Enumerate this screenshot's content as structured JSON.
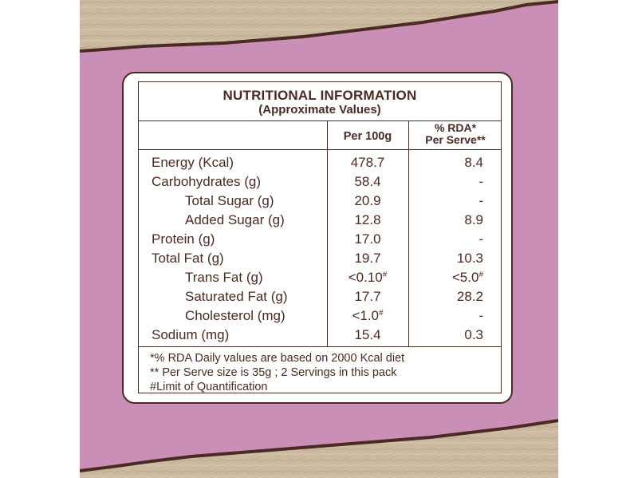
{
  "colors": {
    "pack_pink": "#c98fb6",
    "kraft": "#cbb99f",
    "brown": "#4a2a22",
    "panel": "#ffffff"
  },
  "panel": {
    "title": "NUTRITIONAL INFORMATION",
    "subtitle": "(Approximate Values)",
    "headers": {
      "per100g": "Per 100g",
      "rda_line1": "% RDA*",
      "rda_line2": "Per Serve**"
    },
    "rows": [
      {
        "label": "Energy (Kcal)",
        "per100g": "478.7",
        "rda": "8.4"
      },
      {
        "label": "Carbohydrates (g)",
        "per100g": "58.4",
        "rda": "-"
      },
      {
        "label": "Total Sugar (g)",
        "per100g": "20.9",
        "rda": "-"
      },
      {
        "label": "Added Sugar (g)",
        "per100g": "12.8",
        "rda": "8.9"
      },
      {
        "label": "Protein (g)",
        "per100g": "17.0",
        "rda": "-"
      },
      {
        "label": "Total Fat (g)",
        "per100g": "19.7",
        "rda": "10.3"
      },
      {
        "label": "Trans Fat (g)",
        "per100g": "<0.10",
        "per100g_mark": "#",
        "rda": "<5.0",
        "rda_mark": "#"
      },
      {
        "label": "Saturated Fat (g)",
        "per100g": "17.7",
        "rda": "28.2"
      },
      {
        "label": "Cholesterol (mg)",
        "per100g": "<1.0",
        "per100g_mark": "#",
        "rda": "-"
      },
      {
        "label": "Sodium (mg)",
        "per100g": "15.4",
        "rda": "0.3"
      }
    ],
    "footnotes": [
      "*% RDA Daily values are based on 2000 Kcal diet",
      "** Per Serve size is 35g ; 2 Servings in this pack",
      "#Limit of Quantification"
    ]
  }
}
